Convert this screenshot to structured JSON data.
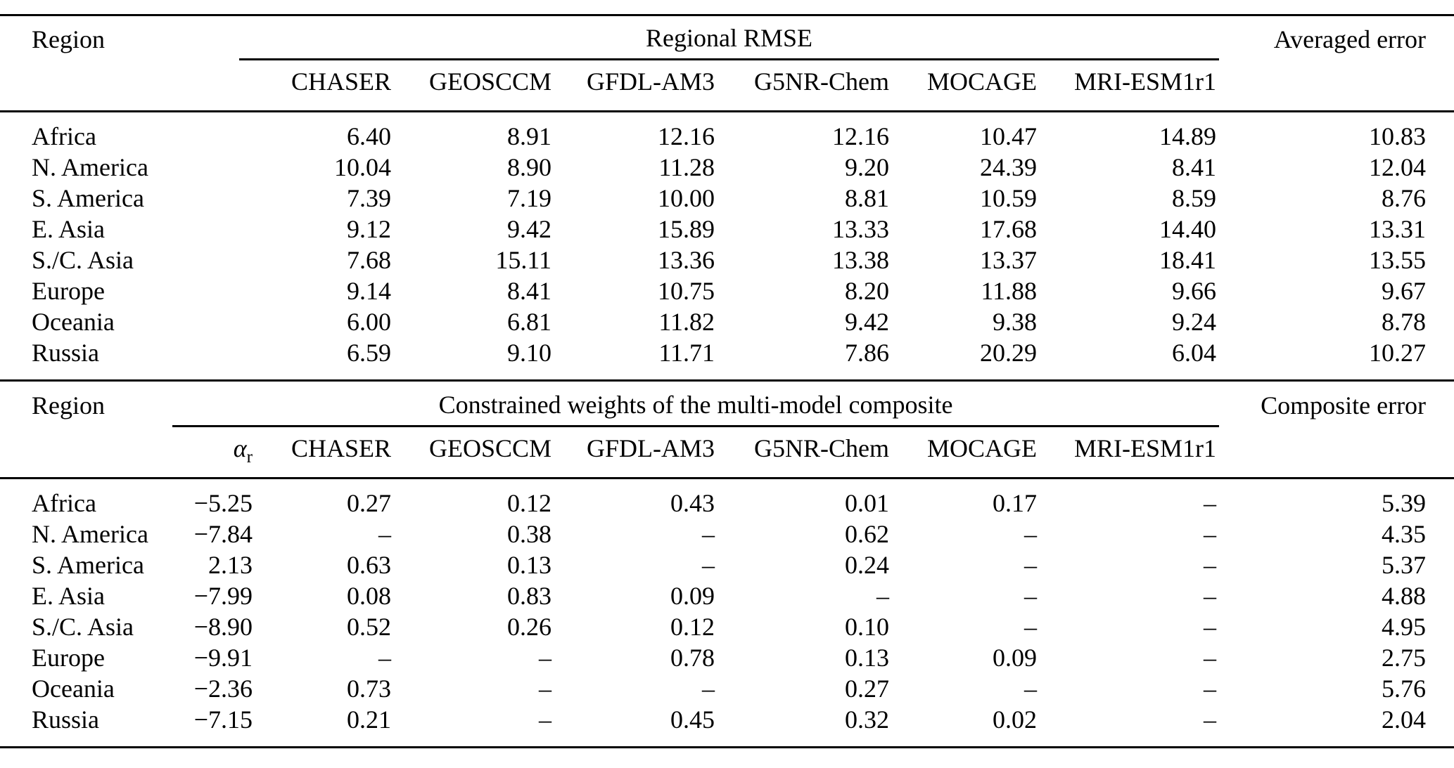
{
  "rmse_table": {
    "region_header": "Region",
    "span_header": "Regional RMSE",
    "right_header": "Averaged error",
    "models": [
      "CHASER",
      "GEOSCCM",
      "GFDL-AM3",
      "G5NR-Chem",
      "MOCAGE",
      "MRI-ESM1r1"
    ],
    "rows": [
      [
        "Africa",
        "6.40",
        "8.91",
        "12.16",
        "12.16",
        "10.47",
        "14.89",
        "10.83"
      ],
      [
        "N. America",
        "10.04",
        "8.90",
        "11.28",
        "9.20",
        "24.39",
        "8.41",
        "12.04"
      ],
      [
        "S. America",
        "7.39",
        "7.19",
        "10.00",
        "8.81",
        "10.59",
        "8.59",
        "8.76"
      ],
      [
        "E. Asia",
        "9.12",
        "9.42",
        "15.89",
        "13.33",
        "17.68",
        "14.40",
        "13.31"
      ],
      [
        "S./C. Asia",
        "7.68",
        "15.11",
        "13.36",
        "13.38",
        "13.37",
        "18.41",
        "13.55"
      ],
      [
        "Europe",
        "9.14",
        "8.41",
        "10.75",
        "8.20",
        "11.88",
        "9.66",
        "9.67"
      ],
      [
        "Oceania",
        "6.00",
        "6.81",
        "11.82",
        "9.42",
        "9.38",
        "9.24",
        "8.78"
      ],
      [
        "Russia",
        "6.59",
        "9.10",
        "11.71",
        "7.86",
        "20.29",
        "6.04",
        "10.27"
      ]
    ]
  },
  "weights_table": {
    "region_header": "Region",
    "span_header": "Constrained weights of the multi-model composite",
    "right_header": "Composite error",
    "alpha_base": "α",
    "alpha_sub": "r",
    "models": [
      "CHASER",
      "GEOSCCM",
      "GFDL-AM3",
      "G5NR-Chem",
      "MOCAGE",
      "MRI-ESM1r1"
    ],
    "rows": [
      [
        "Africa",
        "−5.25",
        "0.27",
        "0.12",
        "0.43",
        "0.01",
        "0.17",
        "–",
        "5.39"
      ],
      [
        "N. America",
        "−7.84",
        "–",
        "0.38",
        "–",
        "0.62",
        "–",
        "–",
        "4.35"
      ],
      [
        "S. America",
        "2.13",
        "0.63",
        "0.13",
        "–",
        "0.24",
        "–",
        "–",
        "5.37"
      ],
      [
        "E. Asia",
        "−7.99",
        "0.08",
        "0.83",
        "0.09",
        "–",
        "–",
        "–",
        "4.88"
      ],
      [
        "S./C. Asia",
        "−8.90",
        "0.52",
        "0.26",
        "0.12",
        "0.10",
        "–",
        "–",
        "4.95"
      ],
      [
        "Europe",
        "−9.91",
        "–",
        "–",
        "0.78",
        "0.13",
        "0.09",
        "–",
        "2.75"
      ],
      [
        "Oceania",
        "−2.36",
        "0.73",
        "–",
        "–",
        "0.27",
        "–",
        "–",
        "5.76"
      ],
      [
        "Russia",
        "−7.15",
        "0.21",
        "–",
        "0.45",
        "0.32",
        "0.02",
        "–",
        "2.04"
      ]
    ]
  }
}
